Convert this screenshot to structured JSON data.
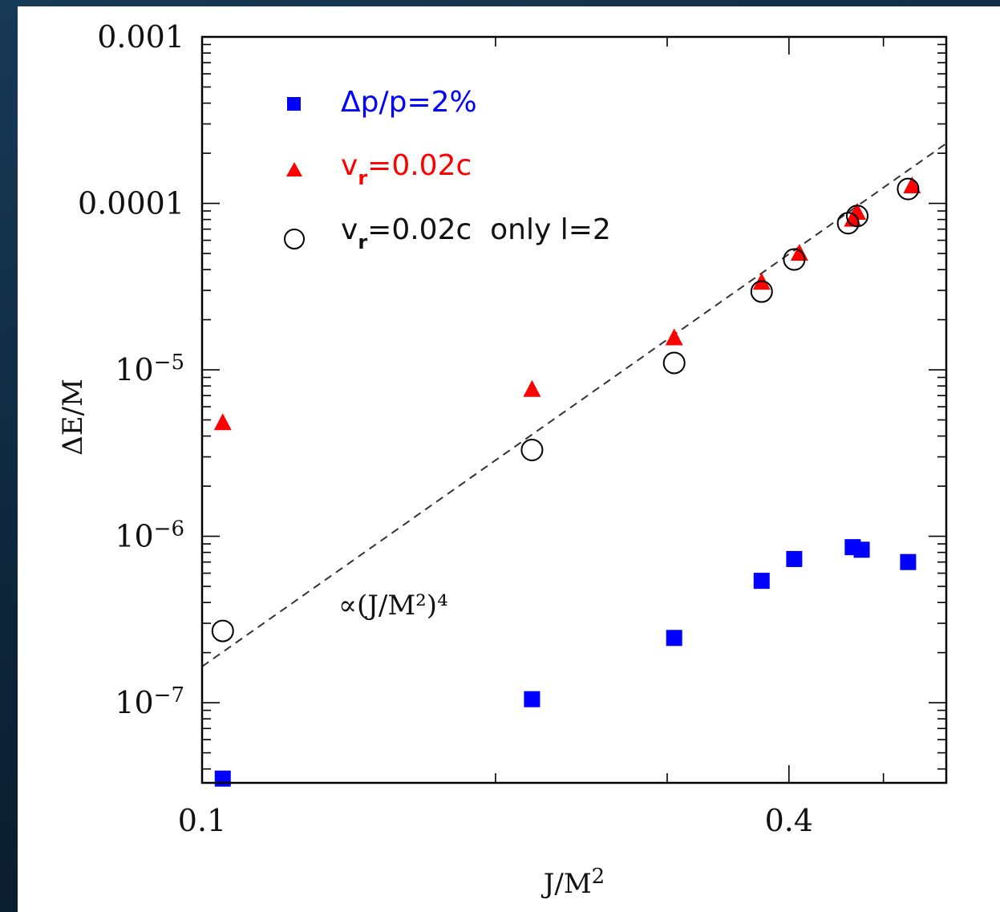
{
  "chart_data": {
    "type": "scatter",
    "title": "",
    "xlabel": "J/M²",
    "ylabel": "ΔE/M",
    "x_scale": "log",
    "y_scale": "log",
    "xlim": [
      0.1,
      0.58
    ],
    "ylim": [
      3.3e-08,
      0.001
    ],
    "grid": false,
    "legend_position": "top-left",
    "x_ticks": [
      {
        "value": 0.1,
        "label": "0.1"
      },
      {
        "value": 0.4,
        "label": "0.4"
      }
    ],
    "y_ticks": [
      {
        "value": 0.001,
        "base": "0.001",
        "exp": ""
      },
      {
        "value": 0.0001,
        "base": "0.0001",
        "exp": ""
      },
      {
        "value": 1e-05,
        "base": "10",
        "exp": "−5"
      },
      {
        "value": 1e-06,
        "base": "10",
        "exp": "−6"
      },
      {
        "value": 1e-07,
        "base": "10",
        "exp": "−7"
      }
    ],
    "series": [
      {
        "name": "Δp/p=2%",
        "marker": "square",
        "color": "#0000ff",
        "x": [
          0.105,
          0.218,
          0.305,
          0.375,
          0.405,
          0.465,
          0.475,
          0.53
        ],
        "y": [
          3.5e-08,
          1.05e-07,
          2.45e-07,
          5.4e-07,
          7.3e-07,
          8.6e-07,
          8.3e-07,
          7e-07
        ]
      },
      {
        "name": "v_r=0.02c",
        "marker": "triangle",
        "color": "#ff0000",
        "x": [
          0.105,
          0.218,
          0.305,
          0.375,
          0.41,
          0.465,
          0.47,
          0.535
        ],
        "y": [
          4.8e-06,
          7.6e-06,
          1.55e-05,
          3.35e-05,
          5e-05,
          8e-05,
          8.8e-05,
          0.000127
        ]
      },
      {
        "name": "v_r=0.02c only l=2",
        "marker": "open-circle",
        "color": "#000000",
        "x": [
          0.105,
          0.218,
          0.305,
          0.375,
          0.405,
          0.46,
          0.47,
          0.53
        ],
        "y": [
          2.7e-07,
          3.3e-06,
          1.1e-05,
          2.95e-05,
          4.6e-05,
          7.6e-05,
          8.4e-05,
          0.000122
        ]
      }
    ],
    "fit_line": {
      "style": "dashed",
      "color": "#333333",
      "exponent": 4,
      "x": [
        0.1,
        0.58
      ],
      "y": [
        1.65e-07,
        0.000229
      ]
    },
    "annotations": [
      {
        "text": "∝(J/M²)⁴"
      }
    ]
  },
  "legend": [
    {
      "text": "Δp/p=2%",
      "color": "#0000ff",
      "marker": "square"
    },
    {
      "text_main": "v",
      "sub": "r",
      "text_rest": "=0.02c",
      "color": "#ff0000",
      "marker": "triangle"
    },
    {
      "text_main": "v",
      "sub": "r",
      "text_rest": "=0.02c  only l=2",
      "color": "#000000",
      "marker": "open-circle"
    }
  ]
}
